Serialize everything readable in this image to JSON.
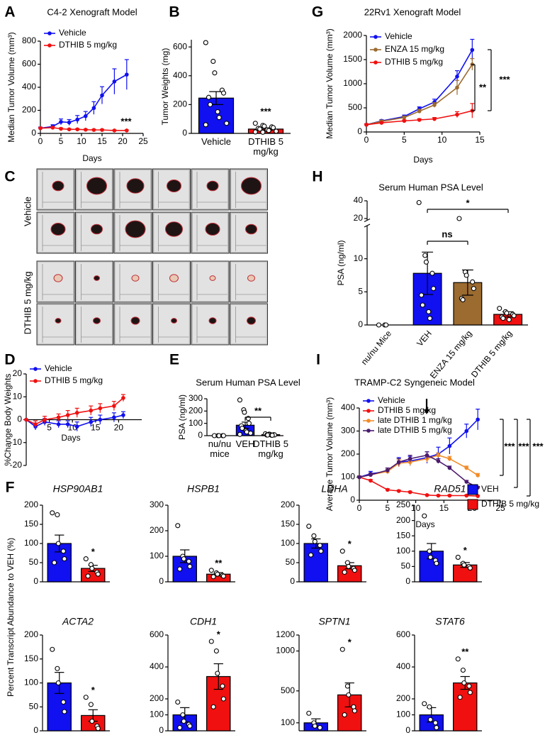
{
  "chart_data": [
    {
      "type": "line",
      "panel": "A",
      "title": "C4-2 Xenograft Model",
      "y_label": "Median Tumor Volume (mm³)",
      "x_label": "Days",
      "x": [
        0,
        3,
        5,
        7,
        9,
        11,
        13,
        15,
        18,
        21
      ],
      "xlim": [
        0,
        25
      ],
      "xticks": [
        0,
        5,
        10,
        15,
        20,
        25
      ],
      "ylim": [
        0,
        800
      ],
      "yticks": [
        0,
        200,
        400,
        600,
        800
      ],
      "series": [
        {
          "name": "Vehicle",
          "color": "#1010f0",
          "values": [
            45,
            60,
            100,
            95,
            120,
            150,
            220,
            330,
            450,
            510
          ],
          "errors": [
            10,
            15,
            25,
            25,
            35,
            40,
            55,
            75,
            110,
            130
          ]
        },
        {
          "name": "DTHIB 5 mg/kg",
          "color": "#f01010",
          "values": [
            45,
            50,
            40,
            35,
            35,
            32,
            30,
            30,
            25,
            25
          ],
          "errors": [
            5,
            8,
            8,
            6,
            6,
            5,
            5,
            5,
            5,
            5
          ]
        }
      ],
      "annotations": [
        "***"
      ]
    },
    {
      "type": "bar",
      "panel": "B",
      "y_label": "Tumor Weights (mg)",
      "categories": [
        "Vehicle",
        "DTHIB 5 mg/kg"
      ],
      "colors": [
        "#1010f0",
        "#f01010"
      ],
      "values": [
        245,
        30
      ],
      "errors": [
        45,
        8
      ],
      "ylim": [
        0,
        650
      ],
      "yticks": [
        0,
        200,
        400,
        600
      ],
      "points": [
        [
          630,
          500,
          420,
          300,
          280,
          250,
          200,
          150,
          110,
          70,
          60
        ],
        [
          70,
          55,
          50,
          45,
          40,
          35,
          30,
          25,
          20,
          15,
          10,
          8
        ]
      ],
      "annotations": [
        "***"
      ]
    },
    {
      "type": "line",
      "panel": "G",
      "title": "22Rv1 Xenograft Model",
      "y_label": "Median Tumor Volume (mm³)",
      "x_label": "Days",
      "x": [
        0,
        2,
        5,
        7,
        9,
        12,
        14
      ],
      "xlim": [
        0,
        15
      ],
      "xticks": [
        0,
        5,
        10,
        15
      ],
      "ylim": [
        0,
        2000
      ],
      "yticks": [
        0,
        500,
        1000,
        1500,
        2000
      ],
      "series": [
        {
          "name": "Vehicle",
          "color": "#1010f0",
          "values": [
            150,
            230,
            320,
            480,
            620,
            1150,
            1700
          ],
          "errors": [
            20,
            25,
            30,
            40,
            60,
            120,
            220
          ]
        },
        {
          "name": "ENZA 15 mg/kg",
          "color": "#9c6b30",
          "values": [
            150,
            220,
            300,
            430,
            560,
            920,
            1400
          ],
          "errors": [
            20,
            25,
            30,
            40,
            50,
            150,
            120
          ]
        },
        {
          "name": "DTHIB 5 mg/kg",
          "color": "#f01010",
          "values": [
            150,
            190,
            230,
            250,
            270,
            360,
            440
          ],
          "errors": [
            15,
            15,
            20,
            25,
            30,
            60,
            150
          ]
        }
      ],
      "annotations": [
        "**",
        "***"
      ]
    },
    {
      "type": "bar",
      "panel": "H",
      "title": "Serum Human PSA Level",
      "y_label": "PSA (ng/ml)",
      "categories": [
        "nu/nu Mice",
        "VEH",
        "ENZA 15 mg/kg",
        "DTHIB 5 mg/kg"
      ],
      "colors": [
        "#ffffff",
        "#1010f0",
        "#9c6b30",
        "#f01010"
      ],
      "values": [
        0,
        7.8,
        6.4,
        1.6
      ],
      "errors": [
        0,
        3.2,
        1.9,
        0.4
      ],
      "ylim": [
        0,
        40
      ],
      "ybreak": [
        15,
        18
      ],
      "yticks": [
        0,
        5,
        10,
        20,
        40
      ],
      "points": [
        [
          0,
          0,
          0
        ],
        [
          38,
          10.5,
          9.5,
          7.8,
          5.5,
          4.5,
          3,
          2,
          1
        ],
        [
          20,
          8,
          7.5,
          6.5,
          5.5,
          4,
          3.8
        ],
        [
          2.5,
          2,
          1.8,
          1.6,
          1.4,
          1.2,
          1,
          0.8
        ]
      ],
      "annotations": [
        "*",
        "ns"
      ]
    },
    {
      "type": "line",
      "panel": "D",
      "y_label": "%Change Body Weights",
      "x_label": "Days",
      "x": [
        0,
        2,
        4,
        7,
        9,
        11,
        14,
        16,
        19,
        21
      ],
      "xlim": [
        0,
        25
      ],
      "xticks": [
        5,
        10,
        15,
        20
      ],
      "ylim": [
        -20,
        20
      ],
      "yticks": [
        -20,
        -10,
        0,
        10,
        20
      ],
      "series": [
        {
          "name": "Vehicle",
          "color": "#1010f0",
          "values": [
            0,
            -3,
            -1,
            -2,
            -2,
            -3,
            -1,
            0,
            1,
            2
          ],
          "errors": [
            0,
            1.5,
            1.5,
            1.5,
            1.5,
            2,
            2,
            2,
            2,
            1.5
          ]
        },
        {
          "name": "DTHIB 5 mg/kg",
          "color": "#f01010",
          "values": [
            0,
            -2,
            0,
            1,
            2,
            3,
            4,
            5,
            6,
            9.5
          ],
          "errors": [
            0,
            1.5,
            1.5,
            1.5,
            2,
            2,
            2,
            2,
            2,
            1.5
          ]
        }
      ]
    },
    {
      "type": "bar",
      "panel": "E",
      "title": "Serum Human PSA Level",
      "y_label": "PSA (ng/ml)",
      "categories": [
        "nu/nu mice",
        "VEH",
        "DTHIB 5 mg/kg"
      ],
      "colors": [
        "#ffffff",
        "#1010f0",
        "#f01010"
      ],
      "values": [
        0,
        85,
        8
      ],
      "errors": [
        0,
        25,
        2
      ],
      "ylim": [
        0,
        300
      ],
      "yticks": [
        0,
        100,
        200,
        300
      ],
      "points": [
        [
          0,
          0,
          0,
          0,
          0
        ],
        [
          290,
          210,
          190,
          140,
          100,
          80,
          60,
          40,
          30,
          20,
          10
        ],
        [
          15,
          12,
          10,
          8,
          6,
          5,
          5,
          4,
          3
        ]
      ],
      "annotations": [
        "**"
      ]
    },
    {
      "type": "line",
      "panel": "I",
      "title": "TRAMP-C2 Syngeneic Model",
      "y_label": "Average Tumor Volume (mm³)",
      "x_label": "Days",
      "x": [
        0,
        2,
        5,
        7,
        9,
        12,
        14,
        16,
        19,
        21
      ],
      "xlim": [
        0,
        25
      ],
      "xticks": [
        0,
        5,
        10,
        15,
        20,
        25
      ],
      "ylim": [
        0,
        400
      ],
      "yticks": [
        0,
        100,
        200,
        300,
        400
      ],
      "series": [
        {
          "name": "Vehicle",
          "color": "#1010f0",
          "values": [
            100,
            115,
            125,
            165,
            170,
            185,
            200,
            235,
            300,
            350
          ],
          "errors": [
            5,
            10,
            10,
            20,
            20,
            25,
            30,
            35,
            30,
            45
          ]
        },
        {
          "name": "DTHIB 5 mg/kg",
          "color": "#f01010",
          "values": [
            100,
            85,
            45,
            40,
            35,
            22,
            20,
            20,
            20,
            18
          ],
          "errors": [
            5,
            5,
            5,
            4,
            4,
            3,
            3,
            3,
            3,
            3
          ]
        },
        {
          "name": "late DTHIB 1 mg/kg",
          "color": "#f28c28",
          "values": [
            100,
            110,
            125,
            160,
            165,
            180,
            195,
            180,
            140,
            108
          ],
          "errors": [
            5,
            8,
            10,
            15,
            15,
            15,
            10,
            10,
            8,
            8
          ]
        },
        {
          "name": "late DTHIB 5 mg/kg",
          "color": "#4b1a6e",
          "values": [
            100,
            110,
            130,
            165,
            180,
            195,
            170,
            140,
            80,
            55
          ],
          "errors": [
            5,
            8,
            10,
            15,
            15,
            15,
            10,
            8,
            6,
            5
          ]
        }
      ],
      "annotations": [
        "***",
        "***",
        "***"
      ]
    },
    {
      "type": "bar",
      "title": "HSP90AB1",
      "colors": [
        "#1010f0",
        "#f01010"
      ],
      "values": [
        100,
        35
      ],
      "errors": [
        22,
        8
      ],
      "ylim": [
        0,
        200
      ],
      "yticks": [
        0,
        50,
        100,
        150,
        200
      ],
      "points": [
        [
          180,
          175,
          100,
          80,
          60,
          50
        ],
        [
          60,
          45,
          35,
          25,
          20,
          15
        ]
      ],
      "annotations": [
        "*"
      ]
    },
    {
      "type": "bar",
      "title": "HSPB1",
      "colors": [
        "#1010f0",
        "#f01010"
      ],
      "values": [
        100,
        30
      ],
      "errors": [
        25,
        6
      ],
      "ylim": [
        0,
        300
      ],
      "yticks": [
        0,
        100,
        200,
        300
      ],
      "points": [
        [
          220,
          100,
          90,
          80,
          60,
          50
        ],
        [
          45,
          35,
          30,
          25,
          22,
          20
        ]
      ],
      "annotations": [
        "**"
      ]
    },
    {
      "type": "bar",
      "title": "LDHA",
      "colors": [
        "#1010f0",
        "#f01010"
      ],
      "values": [
        100,
        42
      ],
      "errors": [
        12,
        8
      ],
      "ylim": [
        0,
        200
      ],
      "yticks": [
        0,
        50,
        100,
        150,
        200
      ],
      "points": [
        [
          145,
          120,
          105,
          95,
          80,
          70
        ],
        [
          80,
          50,
          40,
          35,
          30,
          25
        ]
      ],
      "annotations": [
        "*"
      ]
    },
    {
      "type": "bar",
      "title": "RAD51",
      "colors": [
        "#1010f0",
        "#f01010"
      ],
      "values": [
        100,
        55
      ],
      "errors": [
        25,
        8
      ],
      "ylim": [
        0,
        250
      ],
      "yticks": [
        0,
        50,
        100,
        150,
        200,
        250
      ],
      "points": [
        [
          215,
          100,
          80,
          70,
          60
        ],
        [
          80,
          60,
          55,
          50,
          45
        ]
      ],
      "annotations": [
        "*"
      ]
    },
    {
      "type": "bar",
      "title": "ACTA2",
      "colors": [
        "#1010f0",
        "#f01010"
      ],
      "values": [
        100,
        32
      ],
      "errors": [
        22,
        12
      ],
      "ylim": [
        0,
        200
      ],
      "yticks": [
        0,
        50,
        100,
        150,
        200
      ],
      "points": [
        [
          170,
          130,
          100,
          60,
          40
        ],
        [
          70,
          55,
          20,
          10,
          5
        ]
      ],
      "annotations": [
        "*"
      ]
    },
    {
      "type": "bar",
      "title": "CDH1",
      "colors": [
        "#1010f0",
        "#f01010"
      ],
      "values": [
        100,
        340
      ],
      "errors": [
        45,
        80
      ],
      "ylim": [
        0,
        600
      ],
      "yticks": [
        0,
        100,
        200,
        400,
        600
      ],
      "points": [
        [
          180,
          100,
          60,
          40,
          30,
          20
        ],
        [
          560,
          500,
          360,
          280,
          200,
          150
        ]
      ],
      "annotations": [
        "*"
      ]
    },
    {
      "type": "bar",
      "title": "SPTN1",
      "colors": [
        "#1010f0",
        "#f01010"
      ],
      "values": [
        100,
        450
      ],
      "errors": [
        50,
        150
      ],
      "ylim": [
        0,
        1200
      ],
      "yticks": [
        100,
        500,
        1000,
        1200
      ],
      "points": [
        [
          220,
          100,
          60,
          40
        ],
        [
          1020,
          560,
          450,
          300,
          250,
          200
        ]
      ],
      "annotations": [
        "*"
      ]
    },
    {
      "type": "bar",
      "title": "STAT6",
      "colors": [
        "#1010f0",
        "#f01010"
      ],
      "values": [
        100,
        300
      ],
      "errors": [
        45,
        40
      ],
      "ylim": [
        0,
        600
      ],
      "yticks": [
        0,
        100,
        200,
        400,
        600
      ],
      "points": [
        [
          170,
          150,
          70,
          50,
          20
        ],
        [
          450,
          380,
          300,
          280,
          240,
          210
        ]
      ],
      "annotations": [
        "**"
      ]
    }
  ],
  "photo_panel": {
    "panel": "C",
    "row_labels": [
      "Vehicle",
      "DTHIB 5 mg/kg"
    ]
  },
  "figure_f": {
    "panel": "F",
    "y_label": "Percent Transcript Abundance to VEH (%)",
    "legend": [
      {
        "name": "VEH",
        "color": "#1010f0"
      },
      {
        "name": "DTHIB 5 mg/kg",
        "color": "#f01010"
      }
    ]
  }
}
